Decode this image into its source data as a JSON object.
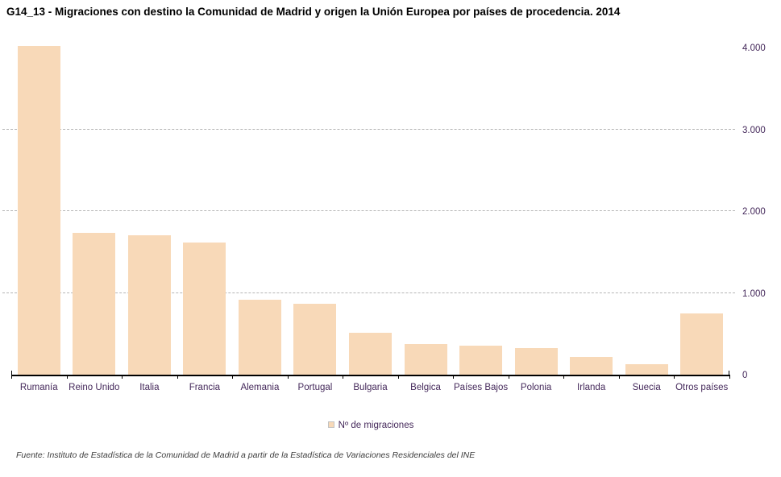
{
  "title": "G14_13 - Migraciones con destino la Comunidad de Madrid y origen la Unión Europea por países de procedencia. 2014",
  "legend": {
    "label": "Nº de migraciones",
    "swatch_color": "#F8D9B8"
  },
  "source_note": "Fuente: Instituto de Estadística de la Comunidad de Madrid a partir de la Estadística de Variaciones Residenciales del INE",
  "y_axis": {
    "tick_labels": [
      "0",
      "1.000",
      "2.000",
      "3.000",
      "4.000"
    ]
  },
  "colors": {
    "bar": "#F8D9B8",
    "axis_labels": "#44285A",
    "gridline": "#B5B5B5",
    "axis_line": "#000000"
  },
  "chart_data": {
    "type": "bar",
    "title": "G14_13 - Migraciones con destino la Comunidad de Madrid y origen la Unión Europea por países de procedencia. 2014",
    "categories": [
      "Rumanía",
      "Reino Unido",
      "Italia",
      "Francia",
      "Alemania",
      "Portugal",
      "Bulgaria",
      "Belgica",
      "Países Bajos",
      "Polonia",
      "Irlanda",
      "Suecia",
      "Otros países"
    ],
    "values": [
      4020,
      1730,
      1700,
      1620,
      915,
      870,
      515,
      375,
      355,
      325,
      220,
      130,
      745
    ],
    "series_name": "Nº de migraciones",
    "xlabel": "",
    "ylabel": "",
    "ylim": [
      0,
      4000
    ],
    "yticks": [
      0,
      1000,
      2000,
      3000,
      4000
    ],
    "grid_values": [
      1000,
      2000,
      3000
    ],
    "grid": "horizontal-dashed",
    "legend_position": "bottom",
    "bar_color": "#F8D9B8"
  }
}
